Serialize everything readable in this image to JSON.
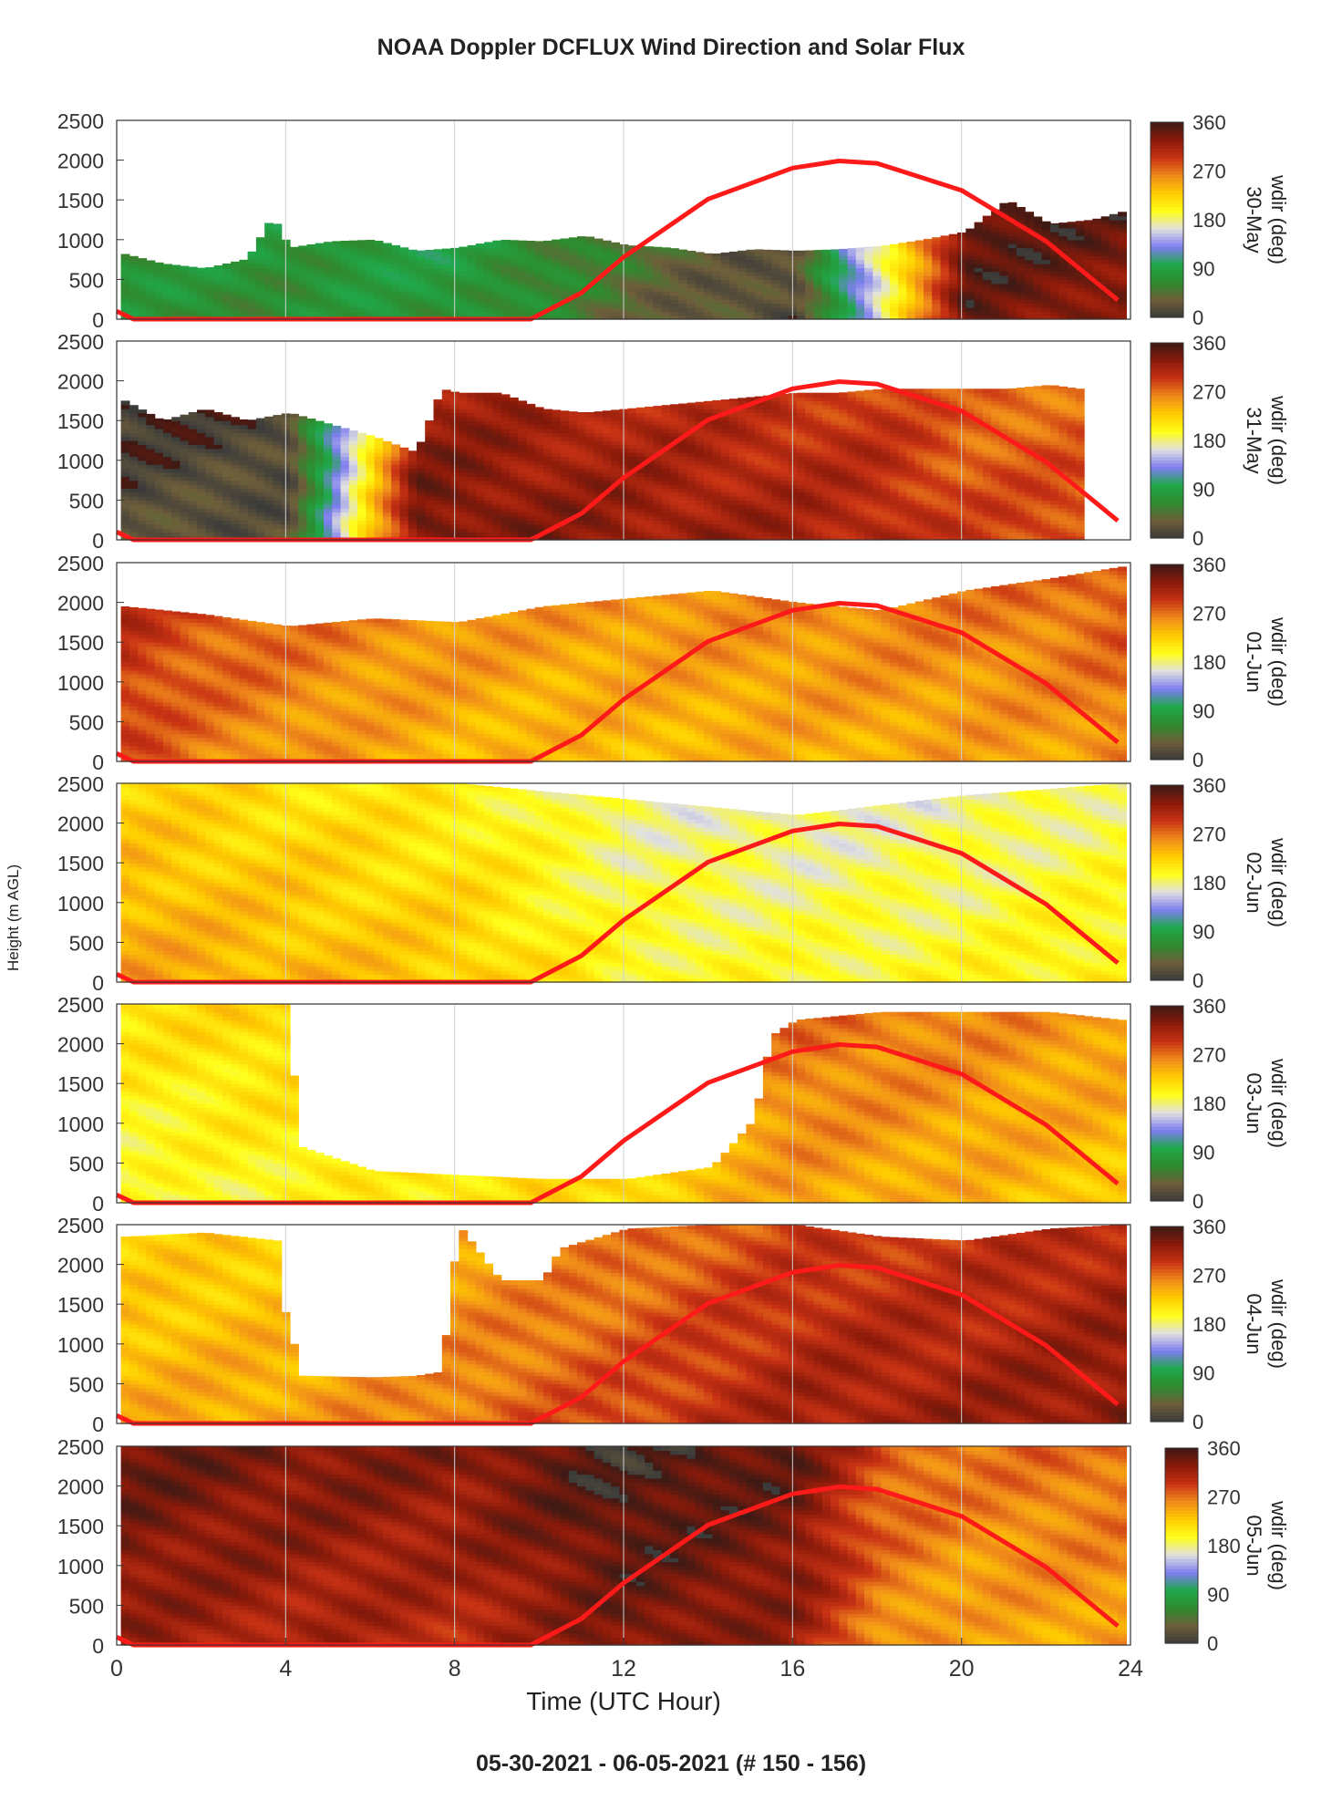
{
  "title": "NOAA Doppler DCFLUX Wind Direction and Solar Flux",
  "subtitle": "05-30-2021 - 06-05-2021   (# 150 - 156)",
  "colors": {
    "solar_flux_line": "#ff1a1a",
    "colormap_stops": [
      "#3a3a3a",
      "#6e5e3a",
      "#2e8b2e",
      "#1fa84a",
      "#7d7df0",
      "#e0e0e0",
      "#ffff1a",
      "#ffcc00",
      "#f08a1a",
      "#c83214",
      "#8b1a0a",
      "#3d1a14"
    ]
  },
  "chart_data": [
    {
      "type": "heatmap",
      "panel": "30-May",
      "xlabel": "Time (UTC Hour)",
      "ylabel": "Height (m AGL)",
      "colorbar_label": "wdir (deg)",
      "colorbar_ticks": [
        "0",
        "90",
        "180",
        "270",
        "360"
      ],
      "xlim": [
        0,
        24
      ],
      "ylim": [
        0,
        2500
      ],
      "x_ticks": [
        "0",
        "4",
        "8",
        "12",
        "16",
        "20",
        "24"
      ],
      "y_ticks": [
        "0",
        "500",
        "1000",
        "1500",
        "2000",
        "2500"
      ],
      "grid": true,
      "top_heights": [
        [
          0.1,
          820
        ],
        [
          1,
          700
        ],
        [
          2,
          640
        ],
        [
          3,
          760
        ],
        [
          3.6,
          1300
        ],
        [
          4,
          900
        ],
        [
          5,
          980
        ],
        [
          6,
          1000
        ],
        [
          7,
          860
        ],
        [
          8,
          900
        ],
        [
          9,
          1000
        ],
        [
          10,
          980
        ],
        [
          11,
          1050
        ],
        [
          12,
          930
        ],
        [
          13,
          900
        ],
        [
          14,
          820
        ],
        [
          15,
          880
        ],
        [
          16,
          860
        ],
        [
          17,
          880
        ],
        [
          18,
          920
        ],
        [
          19,
          1000
        ],
        [
          20,
          1100
        ],
        [
          21,
          1500
        ],
        [
          22,
          1200
        ],
        [
          23,
          1250
        ],
        [
          23.7,
          1350
        ]
      ],
      "dominant_direction_by_hour": [
        [
          0,
          70
        ],
        [
          4,
          70
        ],
        [
          8,
          80
        ],
        [
          10,
          60
        ],
        [
          12,
          40
        ],
        [
          16,
          10
        ],
        [
          20,
          340
        ],
        [
          23.7,
          330
        ]
      ],
      "solar_flux_curve": [
        [
          0,
          100
        ],
        [
          0.4,
          0
        ],
        [
          9.8,
          0
        ],
        [
          11,
          330
        ],
        [
          12,
          780
        ],
        [
          14,
          1510
        ],
        [
          16,
          1900
        ],
        [
          17.1,
          1990
        ],
        [
          18,
          1960
        ],
        [
          20,
          1620
        ],
        [
          22,
          980
        ],
        [
          23.7,
          240
        ]
      ]
    },
    {
      "type": "heatmap",
      "panel": "31-May",
      "colorbar_label": "wdir (deg)",
      "colorbar_ticks": [
        "0",
        "90",
        "180",
        "270",
        "360"
      ],
      "xlim": [
        0,
        24
      ],
      "ylim": [
        0,
        2500
      ],
      "top_heights": [
        [
          0.1,
          1750
        ],
        [
          1,
          1500
        ],
        [
          2,
          1650
        ],
        [
          3,
          1500
        ],
        [
          4,
          1600
        ],
        [
          5,
          1450
        ],
        [
          6,
          1300
        ],
        [
          7,
          1100
        ],
        [
          7.6,
          1900
        ],
        [
          8,
          1850
        ],
        [
          9,
          1850
        ],
        [
          10,
          1650
        ],
        [
          11,
          1600
        ],
        [
          12,
          1650
        ],
        [
          13,
          1700
        ],
        [
          14,
          1750
        ],
        [
          15,
          1800
        ],
        [
          16,
          1850
        ],
        [
          17,
          1850
        ],
        [
          18,
          1900
        ],
        [
          19,
          1900
        ],
        [
          20,
          1900
        ],
        [
          21,
          1900
        ],
        [
          22,
          1950
        ],
        [
          22.7,
          1900
        ]
      ],
      "dominant_direction_by_hour": [
        [
          0,
          20
        ],
        [
          4,
          25
        ],
        [
          7,
          340
        ],
        [
          10,
          330
        ],
        [
          14,
          320
        ],
        [
          18,
          310
        ],
        [
          20,
          290
        ],
        [
          22.7,
          290
        ]
      ],
      "solar_flux_curve": [
        [
          0,
          100
        ],
        [
          0.4,
          0
        ],
        [
          9.8,
          0
        ],
        [
          11,
          330
        ],
        [
          12,
          780
        ],
        [
          14,
          1510
        ],
        [
          16,
          1900
        ],
        [
          17.1,
          1990
        ],
        [
          18,
          1960
        ],
        [
          20,
          1620
        ],
        [
          22,
          980
        ],
        [
          23.7,
          240
        ]
      ]
    },
    {
      "type": "heatmap",
      "panel": "01-Jun",
      "colorbar_label": "wdir (deg)",
      "colorbar_ticks": [
        "0",
        "90",
        "180",
        "270",
        "360"
      ],
      "xlim": [
        0,
        24
      ],
      "ylim": [
        0,
        2500
      ],
      "top_heights": [
        [
          0.1,
          1950
        ],
        [
          2,
          1850
        ],
        [
          4,
          1700
        ],
        [
          6,
          1800
        ],
        [
          8,
          1750
        ],
        [
          10,
          1950
        ],
        [
          12,
          2050
        ],
        [
          14,
          2150
        ],
        [
          16,
          2000
        ],
        [
          18,
          1900
        ],
        [
          20,
          2150
        ],
        [
          22,
          2300
        ],
        [
          23.7,
          2450
        ]
      ],
      "dominant_direction_by_hour": [
        [
          0,
          285
        ],
        [
          2,
          265
        ],
        [
          6,
          245
        ],
        [
          10,
          235
        ],
        [
          14,
          240
        ],
        [
          18,
          245
        ],
        [
          22,
          250
        ],
        [
          23.7,
          260
        ]
      ],
      "solar_flux_curve": [
        [
          0,
          100
        ],
        [
          0.4,
          0
        ],
        [
          9.8,
          0
        ],
        [
          11,
          330
        ],
        [
          12,
          780
        ],
        [
          14,
          1510
        ],
        [
          16,
          1900
        ],
        [
          17.1,
          1990
        ],
        [
          18,
          1960
        ],
        [
          20,
          1620
        ],
        [
          22,
          980
        ],
        [
          23.7,
          240
        ]
      ]
    },
    {
      "type": "heatmap",
      "panel": "02-Jun",
      "colorbar_label": "wdir (deg)",
      "colorbar_ticks": [
        "0",
        "90",
        "180",
        "270",
        "360"
      ],
      "xlim": [
        0,
        24
      ],
      "ylim": [
        0,
        2500
      ],
      "top_heights": [
        [
          0.1,
          2500
        ],
        [
          4,
          2500
        ],
        [
          8,
          2500
        ],
        [
          12,
          2300
        ],
        [
          16,
          2100
        ],
        [
          20,
          2350
        ],
        [
          23.7,
          2500
        ]
      ],
      "dominant_direction_by_hour": [
        [
          0,
          250
        ],
        [
          4,
          240
        ],
        [
          8,
          230
        ],
        [
          12,
          200
        ],
        [
          16,
          195
        ],
        [
          20,
          200
        ],
        [
          23.7,
          210
        ]
      ],
      "solar_flux_curve": [
        [
          0,
          100
        ],
        [
          0.4,
          0
        ],
        [
          9.8,
          0
        ],
        [
          11,
          330
        ],
        [
          12,
          780
        ],
        [
          14,
          1510
        ],
        [
          16,
          1900
        ],
        [
          17.1,
          1990
        ],
        [
          18,
          1960
        ],
        [
          20,
          1620
        ],
        [
          22,
          980
        ],
        [
          23.7,
          240
        ]
      ]
    },
    {
      "type": "heatmap",
      "panel": "03-Jun",
      "colorbar_label": "wdir (deg)",
      "colorbar_ticks": [
        "0",
        "90",
        "180",
        "270",
        "360"
      ],
      "xlim": [
        0,
        24
      ],
      "ylim": [
        0,
        2500
      ],
      "top_heights": [
        [
          0.1,
          2500
        ],
        [
          3.9,
          2500
        ],
        [
          4.3,
          700
        ],
        [
          6,
          400
        ],
        [
          8,
          350
        ],
        [
          10,
          300
        ],
        [
          12,
          300
        ],
        [
          14,
          450
        ],
        [
          15,
          1050
        ],
        [
          15.4,
          2100
        ],
        [
          16,
          2300
        ],
        [
          18,
          2400
        ],
        [
          20,
          2400
        ],
        [
          22,
          2400
        ],
        [
          23.7,
          2300
        ]
      ],
      "dominant_direction_by_hour": [
        [
          0,
          190
        ],
        [
          4,
          200
        ],
        [
          8,
          210
        ],
        [
          12,
          220
        ],
        [
          16,
          250
        ],
        [
          20,
          240
        ],
        [
          23.7,
          230
        ]
      ],
      "solar_flux_curve": [
        [
          0,
          100
        ],
        [
          0.4,
          0
        ],
        [
          9.8,
          0
        ],
        [
          11,
          330
        ],
        [
          12,
          780
        ],
        [
          14,
          1510
        ],
        [
          16,
          1900
        ],
        [
          17.1,
          1990
        ],
        [
          18,
          1960
        ],
        [
          20,
          1620
        ],
        [
          22,
          980
        ],
        [
          23.7,
          240
        ]
      ]
    },
    {
      "type": "heatmap",
      "panel": "04-Jun",
      "colorbar_label": "wdir (deg)",
      "colorbar_ticks": [
        "0",
        "90",
        "180",
        "270",
        "360"
      ],
      "xlim": [
        0,
        24
      ],
      "ylim": [
        0,
        2500
      ],
      "top_heights": [
        [
          0.1,
          2350
        ],
        [
          2,
          2400
        ],
        [
          3.7,
          2300
        ],
        [
          3.9,
          1400
        ],
        [
          4.3,
          600
        ],
        [
          6,
          580
        ],
        [
          7,
          600
        ],
        [
          7.6,
          650
        ],
        [
          8,
          2500
        ],
        [
          9,
          1800
        ],
        [
          10,
          1800
        ],
        [
          10.4,
          2200
        ],
        [
          12,
          2450
        ],
        [
          14,
          2500
        ],
        [
          16,
          2500
        ],
        [
          18,
          2350
        ],
        [
          20,
          2300
        ],
        [
          22,
          2450
        ],
        [
          23.7,
          2500
        ]
      ],
      "dominant_direction_by_hour": [
        [
          0,
          245
        ],
        [
          4,
          250
        ],
        [
          8,
          270
        ],
        [
          12,
          290
        ],
        [
          16,
          315
        ],
        [
          20,
          320
        ],
        [
          23.7,
          330
        ]
      ],
      "solar_flux_curve": [
        [
          0,
          100
        ],
        [
          0.4,
          0
        ],
        [
          9.8,
          0
        ],
        [
          11,
          330
        ],
        [
          12,
          780
        ],
        [
          14,
          1510
        ],
        [
          16,
          1900
        ],
        [
          17.1,
          1990
        ],
        [
          18,
          1960
        ],
        [
          20,
          1620
        ],
        [
          22,
          980
        ],
        [
          23.7,
          240
        ]
      ]
    },
    {
      "type": "heatmap",
      "panel": "05-Jun",
      "colorbar_label": "wdir (deg)",
      "colorbar_ticks": [
        "0",
        "90",
        "180",
        "270",
        "360"
      ],
      "xlim": [
        0,
        24
      ],
      "ylim": [
        0,
        2500
      ],
      "top_heights": [
        [
          0.1,
          2500
        ],
        [
          23.7,
          2500
        ]
      ],
      "dominant_direction_by_hour": [
        [
          0,
          320
        ],
        [
          4,
          310
        ],
        [
          8,
          305
        ],
        [
          12,
          335
        ],
        [
          16,
          320
        ],
        [
          18,
          260
        ],
        [
          20,
          245
        ],
        [
          23.7,
          250
        ]
      ],
      "solar_flux_curve": [
        [
          0,
          100
        ],
        [
          0.4,
          0
        ],
        [
          9.8,
          0
        ],
        [
          11,
          330
        ],
        [
          12,
          780
        ],
        [
          14,
          1510
        ],
        [
          16,
          1900
        ],
        [
          17.1,
          1990
        ],
        [
          18,
          1960
        ],
        [
          20,
          1620
        ],
        [
          22,
          980
        ],
        [
          23.7,
          240
        ]
      ]
    }
  ]
}
